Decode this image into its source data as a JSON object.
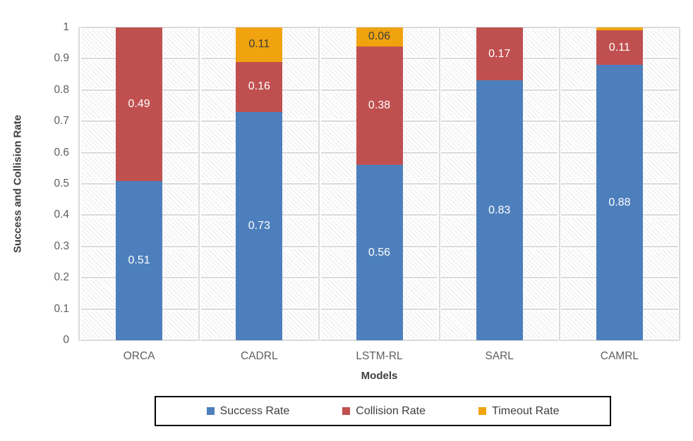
{
  "colors": {
    "success": "#4D7FBC",
    "collision": "#C05050",
    "timeout": "#F0A30F",
    "gridline": "#DADADA",
    "hatch": "#E9E9E9",
    "axis_text": "#5E5E5E",
    "title_text": "#3E3E3E",
    "legend_border": "#000000",
    "background": "#FFFFFF"
  },
  "chart_data": {
    "type": "bar",
    "subtype": "stacked-vertical",
    "title": "",
    "xlabel": "Models",
    "ylabel": "Success and Collision Rate",
    "ylim": [
      0,
      1
    ],
    "grid": "on",
    "plot_background": "diagonal-hatch",
    "legend_position": "bottom",
    "yticks": [
      "1",
      "0.9",
      "0.8",
      "0.7",
      "0.6",
      "0.5",
      "0.4",
      "0.3",
      "0.2",
      "0.1",
      "0"
    ],
    "categories": [
      "ORCA",
      "CADRL",
      "LSTM-RL",
      "SARL",
      "CAMRL"
    ],
    "series": [
      {
        "name": "Success Rate",
        "color_key": "success",
        "label_text_color": "#FFFFFF",
        "values": [
          0.51,
          0.73,
          0.56,
          0.83,
          0.88
        ],
        "labels": [
          "0.51",
          "0.73",
          "0.56",
          "0.83",
          "0.88"
        ]
      },
      {
        "name": "Collision Rate",
        "color_key": "collision",
        "label_text_color": "#FFFFFF",
        "values": [
          0.49,
          0.16,
          0.38,
          0.17,
          0.11
        ],
        "labels": [
          "0.49",
          "0.16",
          "0.38",
          "0.17",
          "0.11"
        ]
      },
      {
        "name": "Timeout Rate",
        "color_key": "timeout",
        "label_text_color": "#3E3E3E",
        "values": [
          0,
          0.11,
          0.06,
          0,
          0.01
        ],
        "labels": [
          null,
          "0.11",
          "0.06",
          null,
          null
        ]
      }
    ]
  }
}
